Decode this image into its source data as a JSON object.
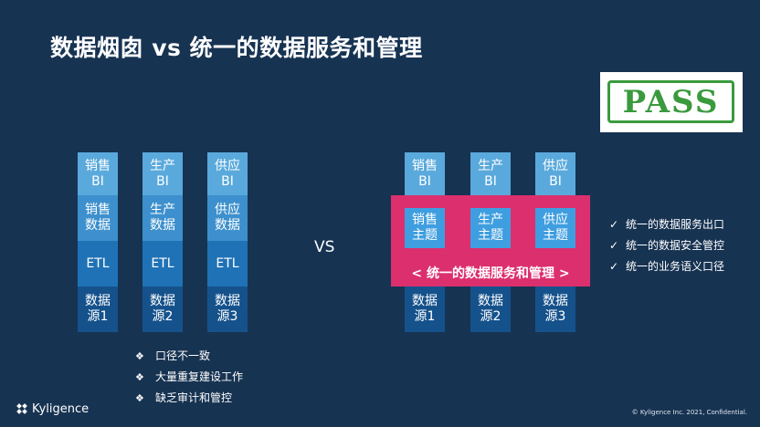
{
  "title": "数据烟囱 vs 统一的数据服务和管理",
  "pass_stamp": "PASS",
  "vs_label": "VS",
  "left_columns": [
    {
      "bi": [
        "销售",
        "BI"
      ],
      "data": [
        "销售",
        "数据"
      ],
      "etl": "ETL",
      "source": [
        "数据",
        "源1"
      ]
    },
    {
      "bi": [
        "生产",
        "BI"
      ],
      "data": [
        "生产",
        "数据"
      ],
      "etl": "ETL",
      "source": [
        "数据",
        "源2"
      ]
    },
    {
      "bi": [
        "供应",
        "BI"
      ],
      "data": [
        "供应",
        "数据"
      ],
      "etl": "ETL",
      "source": [
        "数据",
        "源3"
      ]
    }
  ],
  "right_columns": [
    {
      "bi": [
        "销售",
        "BI"
      ],
      "subject": [
        "销售",
        "主题"
      ],
      "source": [
        "数据",
        "源1"
      ]
    },
    {
      "bi": [
        "生产",
        "BI"
      ],
      "subject": [
        "生产",
        "主题"
      ],
      "source": [
        "数据",
        "源2"
      ]
    },
    {
      "bi": [
        "供应",
        "BI"
      ],
      "subject": [
        "供应",
        "主题"
      ],
      "source": [
        "数据",
        "源3"
      ]
    }
  ],
  "unified_label": "< 统一的数据服务和管理 >",
  "benefits": [
    "统一的数据服务出口",
    "统一的数据安全管控",
    "统一的业务语义口径"
  ],
  "benefit_mark": "✓",
  "problems": [
    "口径不一致",
    "大量重复建设工作",
    "缺乏审计和管控"
  ],
  "problem_mark": "❖",
  "footer": {
    "logo": "Kyligence",
    "copyright": "© Kyligence Inc. 2021, Confidential."
  },
  "colors": {
    "background": "#173352",
    "bi": "#5aa9dc",
    "data": "#3d90cd",
    "etl": "#1f72b5",
    "source": "#15528c",
    "highlight": "#dc2f6e",
    "stamp": "#3a9a3d"
  }
}
